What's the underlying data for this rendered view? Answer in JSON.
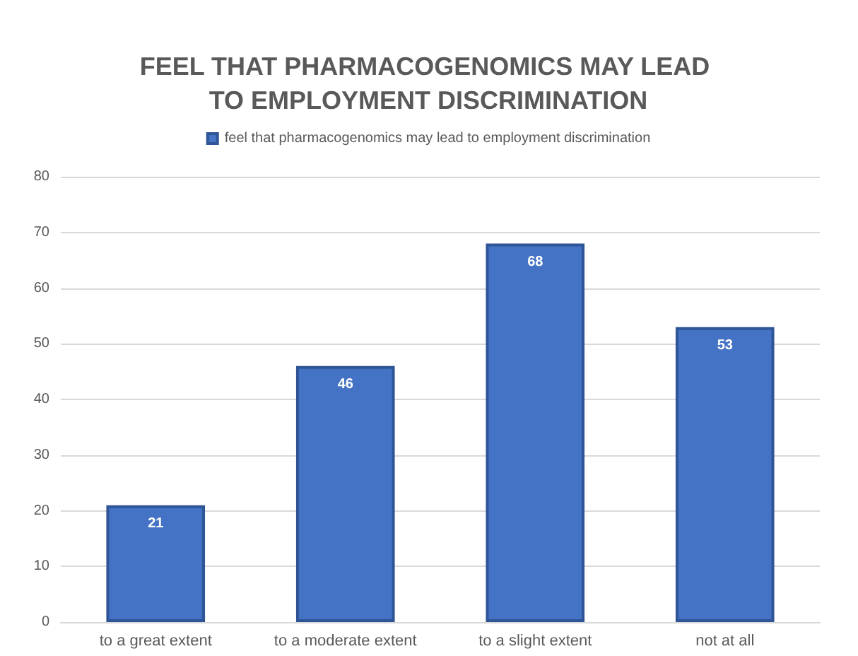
{
  "chart_data": {
    "type": "bar",
    "title": "FEEL THAT PHARMACOGENOMICS MAY LEAD TO EMPLOYMENT DISCRIMINATION",
    "categories": [
      "to a great extent",
      "to a moderate extent",
      "to a slight extent",
      "not at all"
    ],
    "series": [
      {
        "name": "feel that pharmacogenomics may lead to employment discrimination",
        "color": "#4472c4",
        "values": [
          21,
          46,
          68,
          53
        ]
      }
    ],
    "ylim": [
      0,
      80
    ],
    "yticks": [
      0,
      10,
      20,
      30,
      40,
      50,
      60,
      70,
      80
    ],
    "grid": "y",
    "legend": "top",
    "data_labels": true
  }
}
